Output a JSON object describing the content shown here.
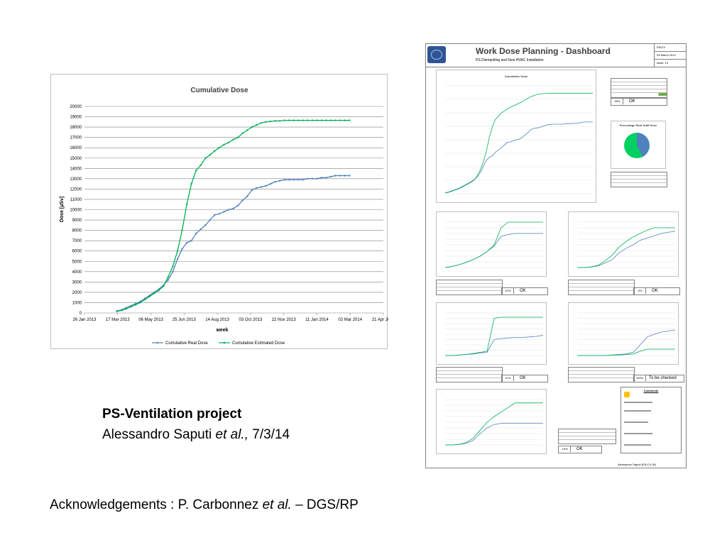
{
  "chart_data": {
    "type": "line",
    "title": "Cumulative Dose",
    "xlabel": "week",
    "ylabel": "Dose [µSv]",
    "ylim": [
      0,
      20000
    ],
    "yticks": [
      0,
      1000,
      2000,
      3000,
      4000,
      5000,
      6000,
      7000,
      8000,
      9000,
      10000,
      11000,
      12000,
      13000,
      14000,
      15000,
      16000,
      17000,
      18000,
      19000,
      20000
    ],
    "xticks": [
      "26 Jan 2013",
      "17 Mar 2013",
      "06 May 2013",
      "25 Jun 2013",
      "14 Aug 2013",
      "03 Oct 2013",
      "22 Nov 2013",
      "11 Jan 2014",
      "02 Mar 2014",
      "21 Apr 2014"
    ],
    "x_days_range": [
      0,
      450
    ],
    "grid": "horizontal",
    "legend": "bottom",
    "series": [
      {
        "name": "Cumulative Real Dose",
        "color": "#4f81bd",
        "x_days": [
          49,
          56,
          63,
          70,
          77,
          84,
          91,
          98,
          105,
          112,
          119,
          126,
          133,
          140,
          147,
          154,
          161,
          168,
          175,
          182,
          189,
          196,
          203,
          210,
          217,
          224,
          231,
          238,
          245,
          252,
          259,
          266,
          273,
          280,
          287,
          294,
          301,
          308,
          315,
          322,
          329,
          336,
          343,
          350,
          357,
          364,
          371,
          378,
          385,
          392,
          399
        ],
        "values": [
          200,
          300,
          500,
          700,
          900,
          1100,
          1400,
          1700,
          2000,
          2300,
          2700,
          3200,
          4000,
          5200,
          6200,
          6800,
          7000,
          7700,
          8100,
          8500,
          9000,
          9500,
          9600,
          9800,
          10000,
          10100,
          10400,
          10900,
          11300,
          11900,
          12100,
          12200,
          12300,
          12500,
          12700,
          12800,
          12900,
          12900,
          12900,
          12900,
          12900,
          13000,
          13000,
          13000,
          13100,
          13100,
          13200,
          13300,
          13300,
          13300,
          13300
        ]
      },
      {
        "name": "Cumulative Estimated Dose",
        "color": "#00b050",
        "x_days": [
          49,
          56,
          63,
          70,
          77,
          84,
          91,
          98,
          105,
          112,
          119,
          126,
          133,
          140,
          147,
          154,
          161,
          168,
          175,
          182,
          189,
          196,
          203,
          210,
          217,
          224,
          231,
          238,
          245,
          252,
          259,
          266,
          273,
          280,
          287,
          294,
          301,
          308,
          315,
          322,
          329,
          336,
          343,
          350,
          357,
          364,
          371,
          378,
          385,
          392,
          399
        ],
        "values": [
          150,
          250,
          400,
          600,
          800,
          1000,
          1300,
          1600,
          1900,
          2200,
          2600,
          3500,
          4500,
          6000,
          8000,
          10500,
          12500,
          13800,
          14300,
          15000,
          15300,
          15700,
          16000,
          16300,
          16500,
          16800,
          17000,
          17400,
          17700,
          18000,
          18200,
          18400,
          18500,
          18550,
          18600,
          18600,
          18650,
          18650,
          18650,
          18650,
          18650,
          18650,
          18650,
          18650,
          18650,
          18650,
          18650,
          18650,
          18650,
          18650,
          18650
        ]
      }
    ]
  },
  "project": {
    "title": "PS-Ventilation project",
    "authors_prefix": "Alessandro Saputi ",
    "authors_etal": "et al.,",
    "authors_date": " 7/3/14"
  },
  "acknowledgements": {
    "prefix": "Acknowledgements : P. Carbonnez ",
    "etal": "et al.",
    "suffix": " – DGS/RP"
  },
  "dashboard": {
    "title": "Work Dose Planning - Dashboard",
    "subtitle": "PS Dismantling and New HVAC Installation",
    "meta": [
      "EN/CV",
      "03 March 2014",
      "week:  10"
    ],
    "main_chart_title": "Cumulative Dose",
    "pie_title": "Percentage Real Total Dose",
    "status_ok": "OK",
    "status_check": "To be checked",
    "pct_main": "-35%",
    "pct_p1": "-10%",
    "pct_p2": "-4%",
    "pct_p3": "-11%",
    "pct_p4": "100%",
    "pct_p5": "-15%",
    "comments_title": "Comments",
    "footer": "Alessandro Saputi (EN-CV-IN)"
  }
}
